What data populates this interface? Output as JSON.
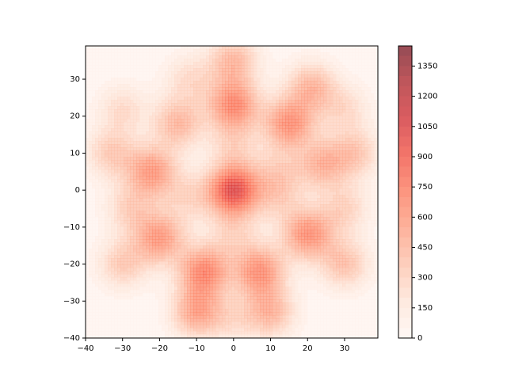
{
  "chart_data": {
    "type": "contour",
    "xlim": [
      -40,
      39
    ],
    "ylim": [
      -40,
      39
    ],
    "xticks": [
      {
        "value": -40,
        "label": "−40"
      },
      {
        "value": -30,
        "label": "−30"
      },
      {
        "value": -20,
        "label": "−20"
      },
      {
        "value": -10,
        "label": "−10"
      },
      0,
      10,
      20,
      30
    ],
    "yticks": [
      {
        "value": -40,
        "label": "−40"
      },
      {
        "value": -30,
        "label": "−30"
      },
      {
        "value": -20,
        "label": "−20"
      },
      {
        "value": -10,
        "label": "−10"
      },
      0,
      10,
      20,
      30
    ],
    "peaks": {
      "x": [
        0,
        0,
        0,
        -22,
        -20,
        -8,
        -10,
        7,
        10,
        20,
        15,
        21,
        -15,
        24,
        33,
        30,
        -33,
        -30,
        -28,
        30,
        0,
        -12,
        12,
        0,
        -30,
        30,
        -12,
        12,
        0
      ],
      "y": [
        0,
        23,
        35,
        5,
        -13,
        -22,
        -33,
        -22,
        -33,
        -12,
        18,
        28,
        18,
        7,
        10,
        -20,
        10,
        -20,
        -5,
        -5,
        12,
        -2,
        -2,
        -12,
        22,
        22,
        30,
        5,
        -35
      ],
      "values": [
        1000,
        700,
        450,
        600,
        600,
        700,
        550,
        650,
        450,
        650,
        650,
        450,
        450,
        450,
        350,
        400,
        350,
        350,
        300,
        300,
        250,
        250,
        250,
        250,
        250,
        250,
        250,
        250,
        200
      ]
    },
    "zlim": [
      0,
      1450
    ],
    "level_step": 50,
    "colorbar_ticks": [
      0,
      150,
      300,
      450,
      600,
      750,
      900,
      1050,
      1200,
      1350
    ],
    "colormap": [
      "#fff5f0",
      "#fee0d2",
      "#fcbba1",
      "#fc9272",
      "#fb6a4a",
      "#ef3b2c",
      "#cb181d",
      "#a50f15",
      "#67000d"
    ],
    "alpha": 0.7
  }
}
